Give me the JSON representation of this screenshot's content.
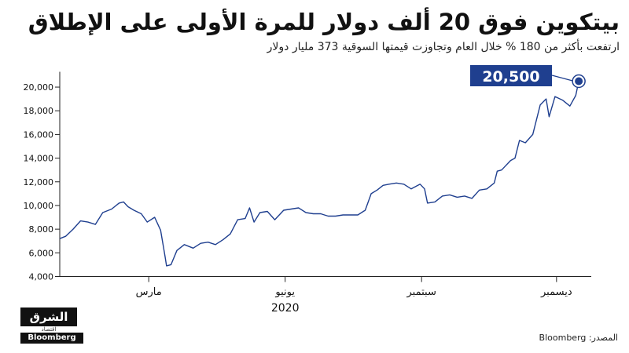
{
  "header": {
    "title": "بيتكوين فوق 20 ألف دولار للمرة الأولى على الإطلاق",
    "subtitle": "ارتفعت بأكثر من 180 % خلال العام وتجاوزت قيمتها السوقية 373 مليار دولار"
  },
  "footer": {
    "source": "المصدر: Bloomberg",
    "logo_name": "الشرق",
    "logo_sub": "اقتصاد",
    "logo_bloomberg": "Bloomberg"
  },
  "colors": {
    "line": "#1f3f8f",
    "label_bg": "#1f3f8f",
    "axis": "#222222",
    "text": "#111111"
  },
  "chart_data": {
    "type": "line",
    "title": "بيتكوين فوق 20 ألف دولار للمرة الأولى على الإطلاق",
    "xlabel": "2020",
    "ylabel": "",
    "ylim": [
      4000,
      20500
    ],
    "xlim": [
      "2020-01-01",
      "2020-12-17"
    ],
    "yticks": [
      4000,
      6000,
      8000,
      10000,
      12000,
      14000,
      16000,
      18000,
      20000
    ],
    "ytick_labels": [
      "4,000",
      "6,000",
      "8,000",
      "10,000",
      "12,000",
      "14,000",
      "16,000",
      "18,000",
      "20,000"
    ],
    "xticks": [
      {
        "date": "2020-03-01",
        "label": "مارس"
      },
      {
        "date": "2020-06-01",
        "label": "يونيو"
      },
      {
        "date": "2020-09-01",
        "label": "سبتمبر"
      },
      {
        "date": "2020-12-01",
        "label": "ديسمبر"
      }
    ],
    "grid": false,
    "annotation": {
      "label": "20,500",
      "date": "2020-12-16",
      "value": 20500
    },
    "series": [
      {
        "x": [
          "2020-01-01",
          "2020-01-05",
          "2020-01-10",
          "2020-01-15",
          "2020-01-20",
          "2020-01-25",
          "2020-01-30",
          "2020-02-05",
          "2020-02-10",
          "2020-02-13",
          "2020-02-16",
          "2020-02-20",
          "2020-02-25",
          "2020-02-29",
          "2020-03-05",
          "2020-03-09",
          "2020-03-12",
          "2020-03-13",
          "2020-03-16",
          "2020-03-20",
          "2020-03-25",
          "2020-03-31",
          "2020-04-05",
          "2020-04-10",
          "2020-04-15",
          "2020-04-20",
          "2020-04-25",
          "2020-04-30",
          "2020-05-05",
          "2020-05-08",
          "2020-05-11",
          "2020-05-15",
          "2020-05-20",
          "2020-05-25",
          "2020-05-31",
          "2020-06-05",
          "2020-06-10",
          "2020-06-15",
          "2020-06-20",
          "2020-06-25",
          "2020-06-30",
          "2020-07-05",
          "2020-07-10",
          "2020-07-15",
          "2020-07-20",
          "2020-07-25",
          "2020-07-29",
          "2020-08-02",
          "2020-08-06",
          "2020-08-10",
          "2020-08-15",
          "2020-08-20",
          "2020-08-25",
          "2020-08-31",
          "2020-09-03",
          "2020-09-05",
          "2020-09-10",
          "2020-09-15",
          "2020-09-20",
          "2020-09-25",
          "2020-09-30",
          "2020-10-05",
          "2020-10-10",
          "2020-10-15",
          "2020-10-20",
          "2020-10-22",
          "2020-10-25",
          "2020-10-31",
          "2020-11-03",
          "2020-11-06",
          "2020-11-10",
          "2020-11-15",
          "2020-11-20",
          "2020-11-24",
          "2020-11-26",
          "2020-11-30",
          "2020-12-05",
          "2020-12-10",
          "2020-12-14",
          "2020-12-16"
        ],
        "values": [
          7200,
          7400,
          8000,
          8700,
          8600,
          8400,
          9400,
          9700,
          10200,
          10300,
          9900,
          9600,
          9300,
          8600,
          9000,
          7900,
          5700,
          4900,
          5000,
          6200,
          6700,
          6400,
          6800,
          6900,
          6700,
          7100,
          7600,
          8800,
          8900,
          9800,
          8600,
          9400,
          9500,
          8800,
          9600,
          9700,
          9800,
          9400,
          9300,
          9300,
          9100,
          9100,
          9200,
          9200,
          9200,
          9600,
          11000,
          11300,
          11700,
          11800,
          11900,
          11800,
          11400,
          11800,
          11400,
          10200,
          10300,
          10800,
          10900,
          10700,
          10800,
          10600,
          11300,
          11400,
          11900,
          12900,
          13000,
          13800,
          14000,
          15500,
          15300,
          16000,
          18500,
          19000,
          17500,
          19200,
          18900,
          18400,
          19300,
          20500
        ]
      }
    ]
  }
}
